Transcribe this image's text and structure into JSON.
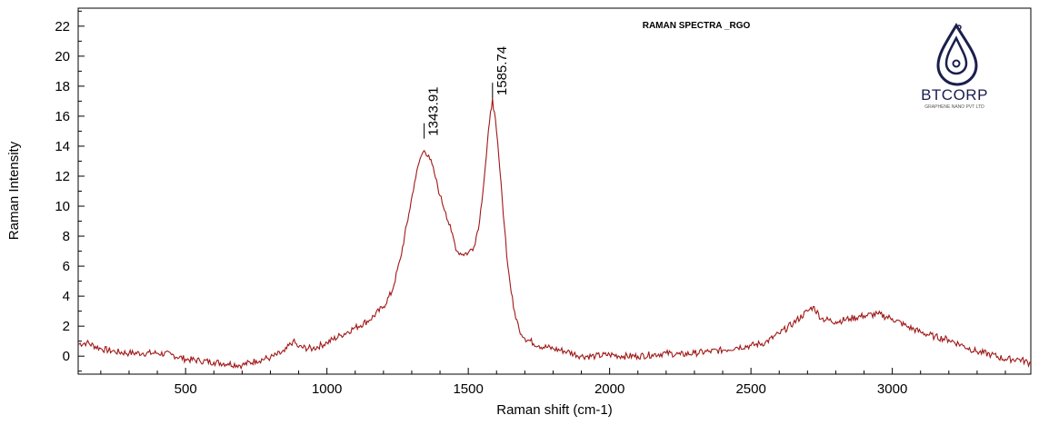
{
  "chart_data": {
    "type": "line",
    "title": "RAMAN SPECTRA _RGO",
    "xlabel": "Raman shift (cm-1)",
    "ylabel": "Raman Intensity",
    "xlim": [
      120,
      3490
    ],
    "ylim": [
      -1.2,
      23.2
    ],
    "x_ticks": [
      500,
      1000,
      1500,
      2000,
      2500,
      3000
    ],
    "y_ticks": [
      0,
      2,
      4,
      6,
      8,
      10,
      12,
      14,
      16,
      18,
      20,
      22
    ],
    "grid": false,
    "line_color": "#a01818",
    "series": [
      {
        "x": [
          120,
          150,
          200,
          250,
          300,
          350,
          400,
          450,
          500,
          550,
          600,
          650,
          700,
          750,
          800,
          850,
          880,
          900,
          950,
          1000,
          1050,
          1100,
          1150,
          1200,
          1230,
          1260,
          1290,
          1310,
          1330,
          1343.91,
          1360,
          1380,
          1400,
          1420,
          1440,
          1460,
          1480,
          1500,
          1520,
          1540,
          1560,
          1575,
          1585.74,
          1600,
          1620,
          1640,
          1660,
          1680,
          1700,
          1750,
          1800,
          1850,
          1900,
          1950,
          2000,
          2050,
          2100,
          2150,
          2200,
          2250,
          2300,
          2350,
          2400,
          2450,
          2500,
          2550,
          2600,
          2650,
          2700,
          2720,
          2750,
          2800,
          2850,
          2900,
          2950,
          3000,
          3050,
          3100,
          3150,
          3200,
          3250,
          3300,
          3350,
          3400,
          3450,
          3490
        ],
        "y": [
          0.8,
          0.9,
          0.5,
          0.3,
          0.2,
          0.2,
          0.2,
          0.1,
          -0.2,
          -0.3,
          -0.4,
          -0.5,
          -0.6,
          -0.3,
          -0.1,
          0.3,
          1.0,
          0.6,
          0.5,
          0.9,
          1.4,
          1.9,
          2.4,
          3.3,
          4.3,
          6.5,
          9.5,
          11.6,
          13.2,
          13.7,
          13.4,
          12.2,
          10.7,
          9.6,
          8.3,
          7.0,
          6.8,
          6.9,
          7.3,
          9.0,
          12.6,
          15.6,
          17.2,
          15.0,
          10.5,
          6.0,
          3.2,
          1.8,
          1.2,
          0.7,
          0.5,
          0.3,
          0.0,
          0.0,
          0.1,
          0.0,
          0.0,
          0.1,
          0.2,
          0.1,
          0.2,
          0.3,
          0.4,
          0.6,
          0.7,
          0.9,
          1.5,
          2.2,
          3.0,
          3.3,
          2.5,
          2.3,
          2.5,
          2.7,
          2.8,
          2.5,
          2.0,
          1.6,
          1.3,
          1.1,
          0.7,
          0.3,
          0.1,
          -0.2,
          -0.2,
          -0.5
        ]
      }
    ],
    "annotations": [
      {
        "x": 1343.91,
        "y": 14.5,
        "text": "1343.91"
      },
      {
        "x": 1585.74,
        "y": 17.2,
        "text": "1585.74"
      }
    ]
  },
  "logo": {
    "name": "BTCORP",
    "tagline": "GRAPHENE NANO PVT LTD",
    "color": "#1a1f4d"
  }
}
